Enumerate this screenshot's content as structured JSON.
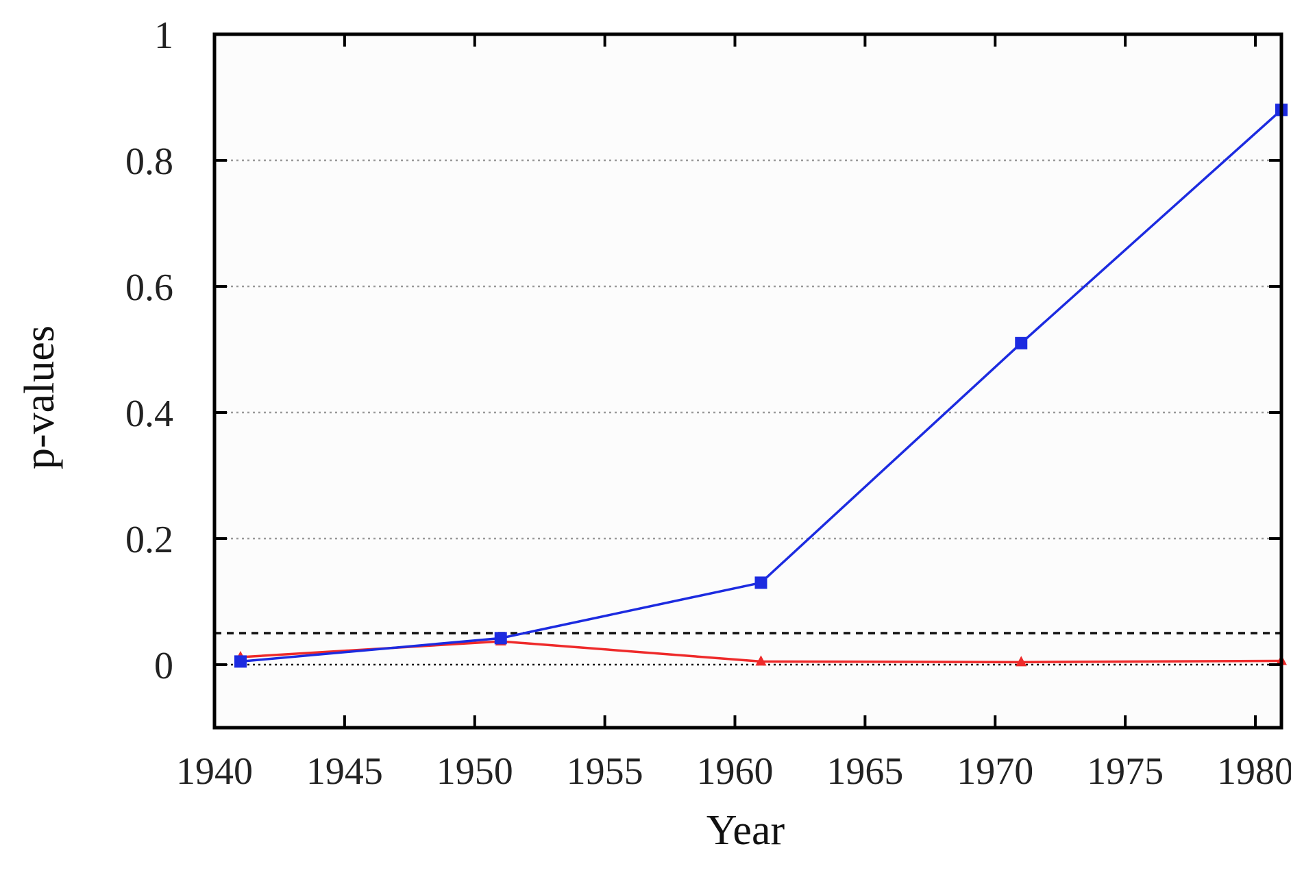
{
  "chart_data": {
    "type": "line",
    "title": "",
    "xlabel": "Year",
    "ylabel": "p-values",
    "xlim": [
      1940,
      1981
    ],
    "ylim": [
      -0.1,
      1
    ],
    "x_ticks": [
      1940,
      1945,
      1950,
      1955,
      1960,
      1965,
      1970,
      1975,
      1980
    ],
    "y_ticks": [
      0,
      0.2,
      0.4,
      0.6,
      0.8,
      1
    ],
    "y_tick_labels": [
      "0",
      "0.2",
      "0.4",
      "0.6",
      "0.8",
      "1"
    ],
    "grid": {
      "horizontal": true,
      "style": "dotted",
      "color": "#9a9a9a"
    },
    "reference_line": {
      "y": 0.05,
      "style": "dashed",
      "color": "#111111"
    },
    "zero_line": {
      "y": 0,
      "style": "dotted",
      "color": "#111111"
    },
    "plot_background": "#fcfcfc",
    "series": [
      {
        "color": "#1c2be0",
        "marker": "square",
        "x": [
          1941,
          1951,
          1961,
          1971,
          1981
        ],
        "y": [
          0.005,
          0.042,
          0.13,
          0.51,
          0.88
        ]
      },
      {
        "color": "#ee2a2a",
        "marker": "triangle",
        "x": [
          1941,
          1951,
          1961,
          1971,
          1981
        ],
        "y": [
          0.012,
          0.037,
          0.005,
          0.004,
          0.006
        ]
      }
    ]
  }
}
